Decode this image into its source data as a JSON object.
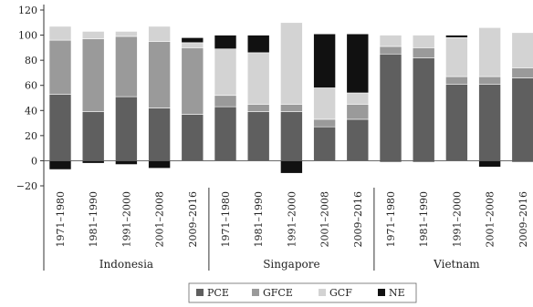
{
  "chart_data": {
    "type": "bar",
    "stacked": true,
    "title": "",
    "xlabel": "",
    "ylabel": "",
    "ylim": [
      -20,
      120
    ],
    "yticks": [
      -20,
      0,
      20,
      40,
      60,
      80,
      100,
      120
    ],
    "grid": false,
    "legend_position": "bottom",
    "groups": [
      {
        "name": "Indonesia",
        "categories": [
          "1971–1980",
          "1981–1990",
          "1991–2000",
          "2001–2008",
          "2009–2016"
        ]
      },
      {
        "name": "Singapore",
        "categories": [
          "1971–1980",
          "1981–1990",
          "1991–2000",
          "2001–2008",
          "2009–2016"
        ]
      },
      {
        "name": "Vietnam",
        "categories": [
          "1971–1980",
          "1981–1990",
          "1991–2000",
          "2001–2008",
          "2009–2016"
        ]
      }
    ],
    "series": [
      {
        "name": "PCE",
        "color": "#5f5f5f",
        "values": [
          53,
          39,
          51,
          42,
          37,
          43,
          39,
          39,
          27,
          33,
          85,
          82,
          61,
          61,
          66
        ]
      },
      {
        "name": "GFCE",
        "color": "#9a9a9a",
        "values": [
          43,
          58,
          48,
          53,
          53,
          9,
          6,
          6,
          6,
          12,
          6,
          8,
          6,
          6,
          8
        ]
      },
      {
        "name": "GCF",
        "color": "#d3d3d3",
        "values": [
          11,
          6,
          4,
          12,
          4,
          37,
          41,
          65,
          25,
          9,
          9,
          10,
          31,
          39,
          28
        ]
      },
      {
        "name": "NE",
        "color": "#111111",
        "values": [
          -7,
          -2,
          -3,
          -6,
          4,
          11,
          14,
          -10,
          43,
          47,
          -1,
          -1,
          2,
          -5,
          -1
        ]
      }
    ]
  }
}
